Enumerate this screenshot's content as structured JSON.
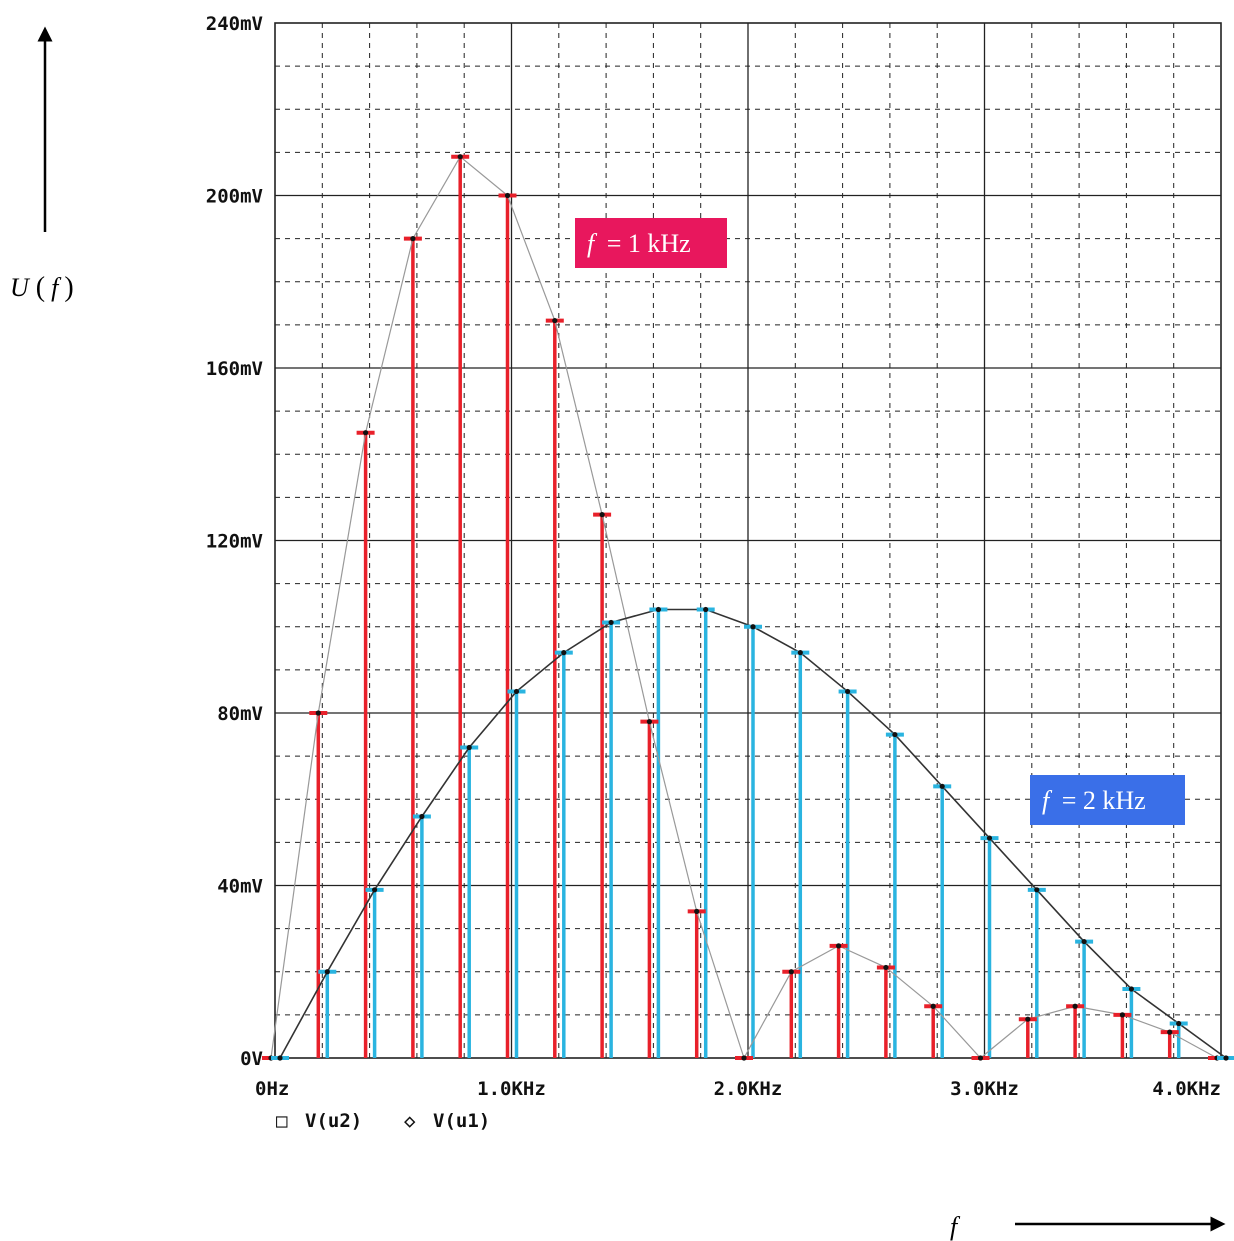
{
  "chart_data": {
    "type": "bar",
    "x_ticks": [
      "0Hz",
      "1.0KHz",
      "2.0KHz",
      "3.0KHz",
      "4.0KHz"
    ],
    "y_ticks": [
      "0V",
      "40mV",
      "80mV",
      "120mV",
      "160mV",
      "200mV",
      "240mV"
    ],
    "xlim": [
      0,
      4000
    ],
    "ylim": [
      0,
      240
    ],
    "grid": true,
    "ylabel_symbol": "U",
    "ylabel_arg": "f",
    "xlabel": "f",
    "legend": [
      {
        "marker": "□",
        "label": "V(u2)"
      },
      {
        "marker": "◇",
        "label": "V(u1)"
      }
    ],
    "annotations": [
      {
        "label_var": "f",
        "label_eq": "= 1 kHz",
        "color": "#e8175d",
        "series": "1kHz"
      },
      {
        "label_var": "f",
        "label_eq": "= 2 kHz",
        "color": "#3a6fe8",
        "series": "2kHz"
      }
    ],
    "series": [
      {
        "key": "1kHz",
        "color": "#e8202a",
        "line_color": "#999999",
        "x": [
          0,
          200,
          400,
          600,
          800,
          1000,
          1200,
          1400,
          1600,
          1800,
          2000,
          2200,
          2400,
          2600,
          2800,
          3000,
          3200,
          3400,
          3600,
          3800,
          4000
        ],
        "values": [
          0,
          80,
          145,
          190,
          209,
          200,
          171,
          126,
          78,
          34,
          0,
          20,
          26,
          21,
          12,
          0,
          9,
          12,
          10,
          6,
          0
        ]
      },
      {
        "key": "2kHz",
        "color": "#2ab4e0",
        "line_color": "#333333",
        "x": [
          0,
          200,
          400,
          600,
          800,
          1000,
          1200,
          1400,
          1600,
          1800,
          2000,
          2200,
          2400,
          2600,
          2800,
          3000,
          3200,
          3400,
          3600,
          3800,
          4000
        ],
        "values": [
          0,
          20,
          39,
          56,
          72,
          85,
          94,
          101,
          104,
          104,
          100,
          94,
          85,
          75,
          63,
          51,
          39,
          27,
          16,
          8,
          0
        ]
      }
    ]
  }
}
